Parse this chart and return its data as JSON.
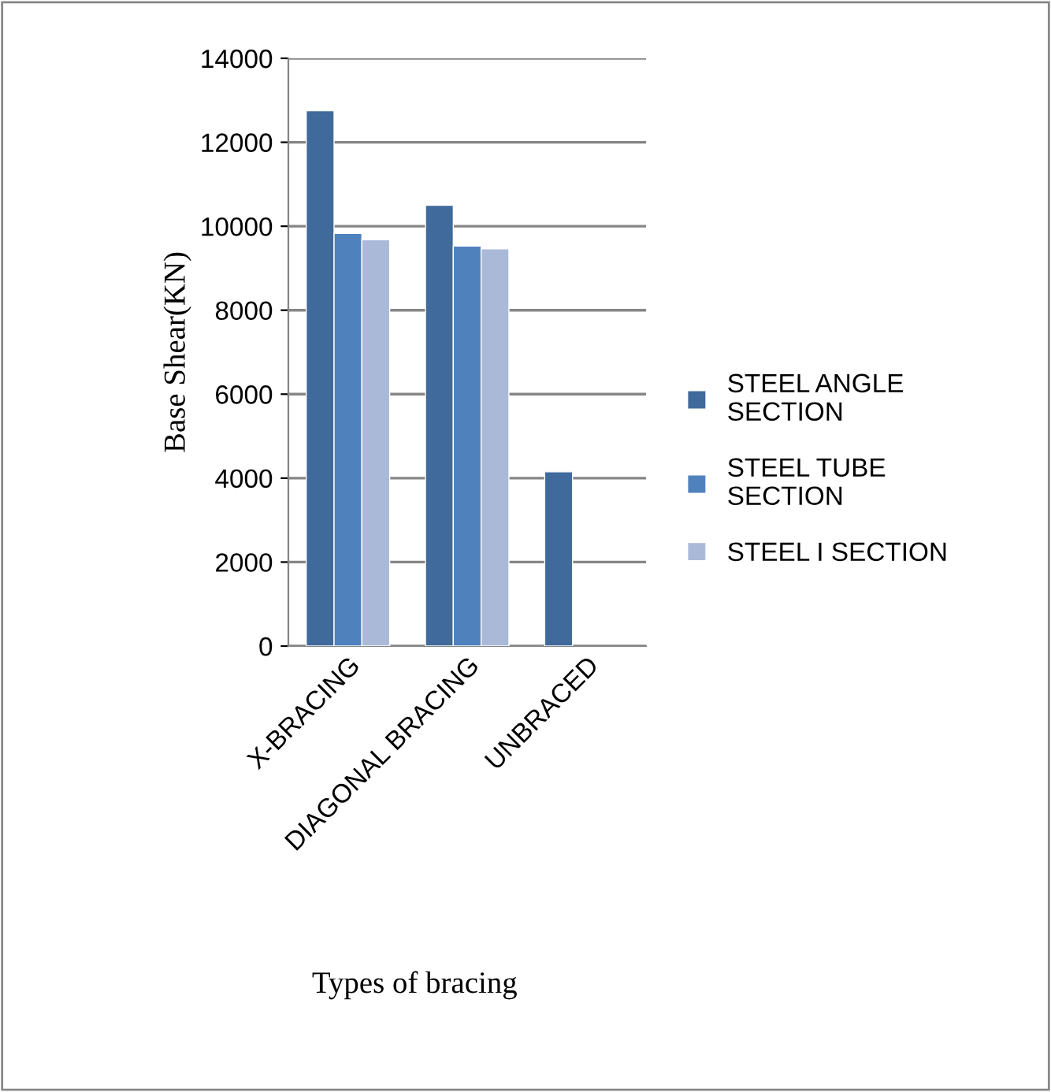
{
  "chart_data": {
    "type": "bar",
    "xlabel": "Types of bracing",
    "ylabel": "Base Shear(KN)",
    "categories": [
      "X-BRACING",
      "DIAGONAL BRACING",
      "UNBRACED"
    ],
    "series": [
      {
        "name": "STEEL ANGLE SECTION",
        "color": "#3f6a9b",
        "values": [
          12750,
          10500,
          4150
        ]
      },
      {
        "name": "STEEL TUBE SECTION",
        "color": "#4f81bd",
        "values": [
          9830,
          9530,
          null
        ]
      },
      {
        "name": "STEEL I SECTION",
        "color": "#aab9d8",
        "values": [
          9680,
          9460,
          null
        ]
      }
    ],
    "ylim": [
      0,
      14000
    ],
    "yticks": [
      0,
      2000,
      4000,
      6000,
      8000,
      10000,
      12000,
      14000
    ],
    "grid": "y",
    "legend": "right"
  }
}
